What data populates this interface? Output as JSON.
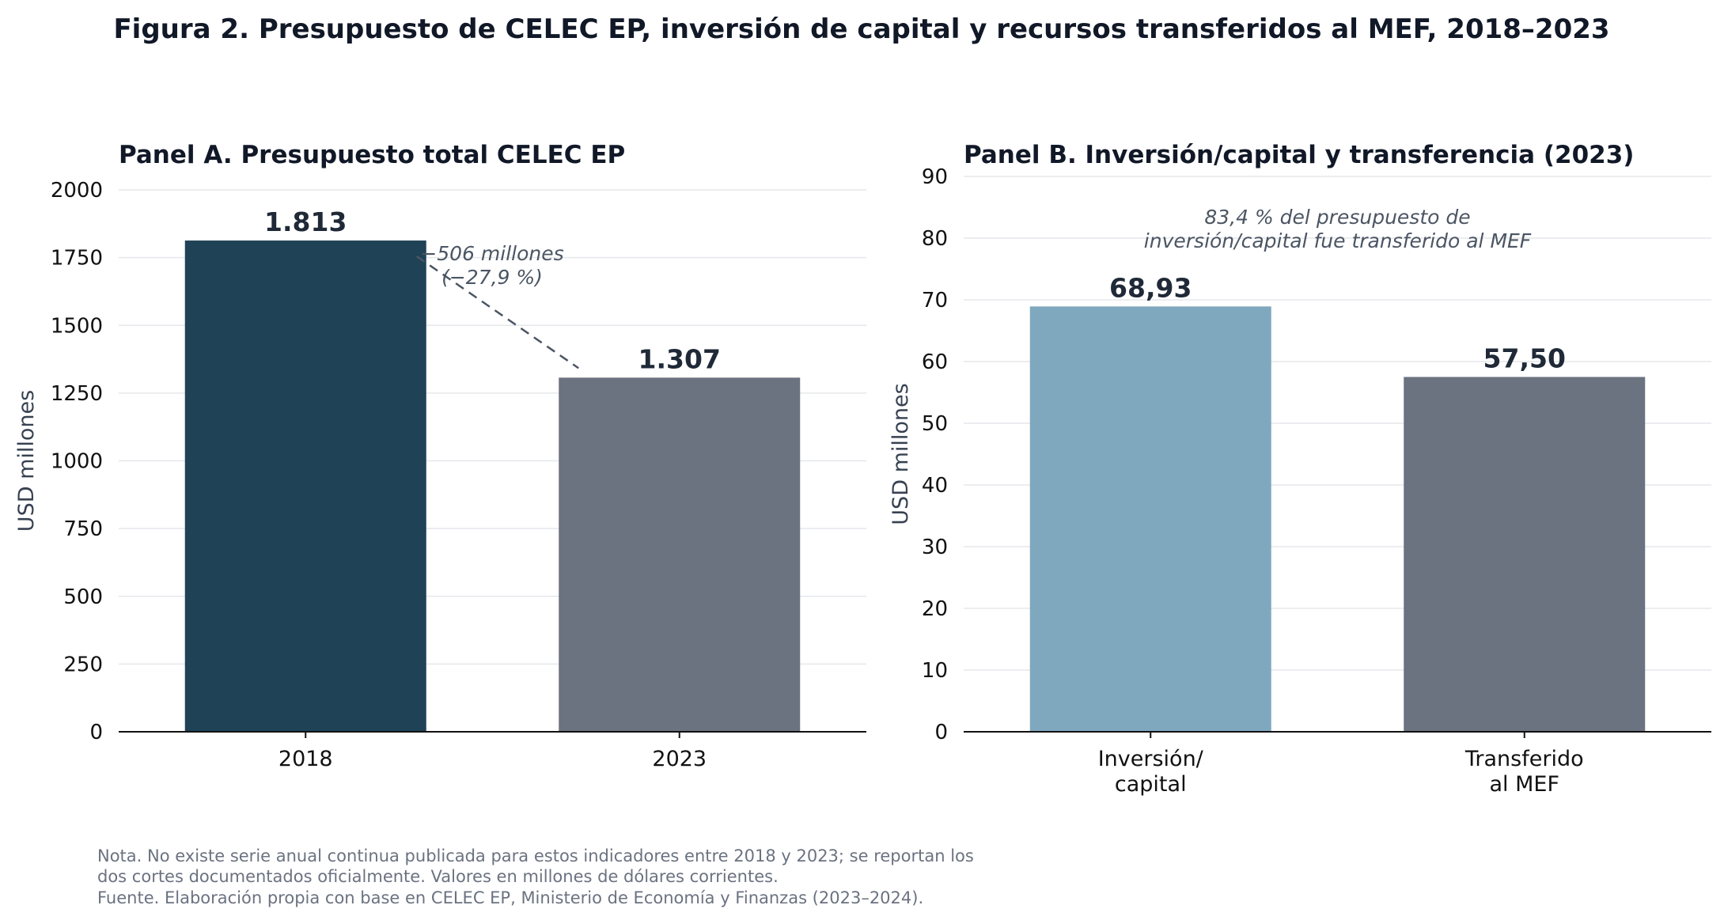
{
  "figure": {
    "title": "Figura 2. Presupuesto de CELEC EP, inversión de capital y recursos transferidos al MEF, 2018–2023",
    "note_lines": [
      "Nota. No existe serie anual continua publicada para estos indicadores entre 2018 y 2023; se reportan los",
      "dos cortes documentados oficialmente. Valores en millones de dólares corrientes.",
      "Fuente. Elaboración propia con base en CELEC EP, Ministerio de Economía y Finanzas (2023–2024)."
    ]
  },
  "colors": {
    "bar_2018": "#1f4257",
    "bar_gray": "#6b7280",
    "bar_light_blue": "#7fa8bf",
    "text_dark": "#111827",
    "grid": "#e5e7eb"
  },
  "chart_data": [
    {
      "type": "bar",
      "title": "Panel A. Presupuesto total CELEC EP",
      "xlabel": "",
      "ylabel": "USD millones",
      "categories": [
        "2018",
        "2023"
      ],
      "values": [
        1813,
        1307
      ],
      "data_labels": [
        "1.813",
        "1.307"
      ],
      "ylim": [
        0,
        2000
      ],
      "yticks": [
        0,
        250,
        500,
        750,
        1000,
        1250,
        1500,
        1750,
        2000
      ],
      "grid": "horizontal",
      "annotation": {
        "lines": [
          "−506 millones",
          "(−27,9 %)"
        ],
        "connector": "dashed line from 2018 bar top to 2023 bar top"
      }
    },
    {
      "type": "bar",
      "title": "Panel B. Inversión/capital y transferencia (2023)",
      "xlabel": "",
      "ylabel": "USD millones",
      "categories": [
        "Inversión/\ncapital",
        "Transferido\nal MEF"
      ],
      "values": [
        68.93,
        57.5
      ],
      "data_labels": [
        "68,93",
        "57,50"
      ],
      "ylim": [
        0,
        90
      ],
      "yticks": [
        0,
        10,
        20,
        30,
        40,
        50,
        60,
        70,
        80,
        90
      ],
      "grid": "horizontal",
      "annotation": {
        "lines": [
          "83,4 % del presupuesto de",
          "inversión/capital fue transferido al MEF"
        ]
      }
    }
  ]
}
